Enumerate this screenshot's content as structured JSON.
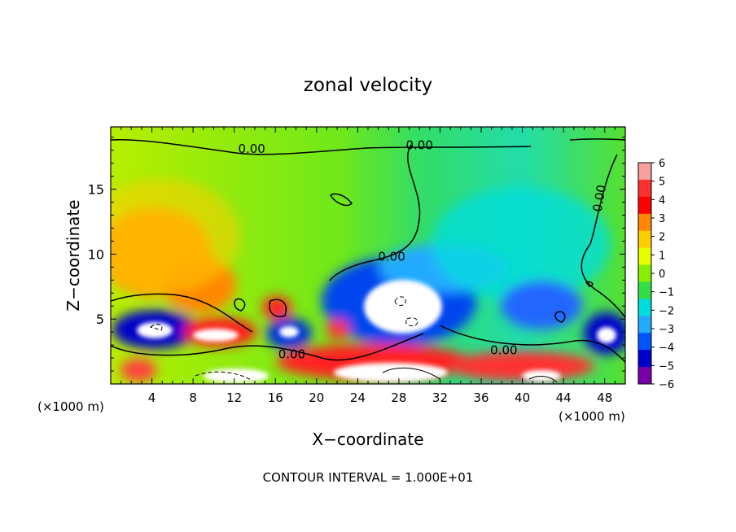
{
  "chart_data": {
    "type": "heatmap",
    "title": "zonal velocity",
    "xlabel": "X−coordinate",
    "ylabel": "Z−coordinate",
    "x_unit_left": "(×1000 m)",
    "x_unit_right": "(×1000 m)",
    "footer": "CONTOUR INTERVAL = 1.000E+01",
    "xlim": [
      0,
      50
    ],
    "ylim": [
      0,
      19.8
    ],
    "x_ticks": [
      4,
      8,
      12,
      16,
      20,
      24,
      28,
      32,
      36,
      40,
      44,
      48
    ],
    "y_ticks": [
      5,
      10,
      15
    ],
    "colorbar": {
      "range": [
        -6,
        6
      ],
      "labels": [
        "6",
        "5",
        "4",
        "3",
        "2",
        "1",
        "0",
        "−1",
        "−2",
        "−3",
        "−4",
        "−5",
        "−6"
      ],
      "colors": [
        "#f6a0a0",
        "#ff3030",
        "#ff0000",
        "#ff8800",
        "#ffcc00",
        "#e6ff00",
        "#88ee00",
        "#33dd44",
        "#00dddd",
        "#22aaff",
        "#0055ff",
        "#0000cc",
        "#7700aa"
      ]
    },
    "contour_labels": [
      {
        "text": "0.00",
        "x": 13.7,
        "y": 18.1
      },
      {
        "text": "0.00",
        "x": 30.0,
        "y": 18.4
      },
      {
        "text": "0.00",
        "x": 47.5,
        "y": 14.3
      },
      {
        "text": "0.00",
        "x": 27.3,
        "y": 9.8
      },
      {
        "text": "0.00",
        "x": 17.6,
        "y": 2.3
      },
      {
        "text": "0.00",
        "x": 38.2,
        "y": 2.6
      }
    ],
    "features": [
      {
        "kind": "positive-core",
        "value": 3,
        "x": 4,
        "y": 10.5,
        "rx": 6,
        "ry": 5
      },
      {
        "kind": "positive-core",
        "value": 3,
        "x": 9,
        "y": 7,
        "rx": 4,
        "ry": 3
      },
      {
        "kind": "negative-core",
        "value": -6,
        "x": 28.7,
        "y": 6.0,
        "rx": 3.8,
        "ry": 2.6
      },
      {
        "kind": "negative-band",
        "value": -3,
        "x": 41.5,
        "y": 6.2,
        "rx": 5,
        "ry": 2.5
      },
      {
        "kind": "negative-core",
        "value": -6,
        "x": 4.5,
        "y": 4.0,
        "rx": 2.6,
        "ry": 1.3
      },
      {
        "kind": "positive-core",
        "value": 6,
        "x": 10.5,
        "y": 3.8,
        "rx": 2.6,
        "ry": 0.9
      },
      {
        "kind": "positive-core",
        "value": 6,
        "x": 27.5,
        "y": 1.0,
        "rx": 7,
        "ry": 1.2
      },
      {
        "kind": "negative-core",
        "value": -6,
        "x": 48.5,
        "y": 3.9,
        "rx": 1.5,
        "ry": 1.2
      }
    ]
  }
}
